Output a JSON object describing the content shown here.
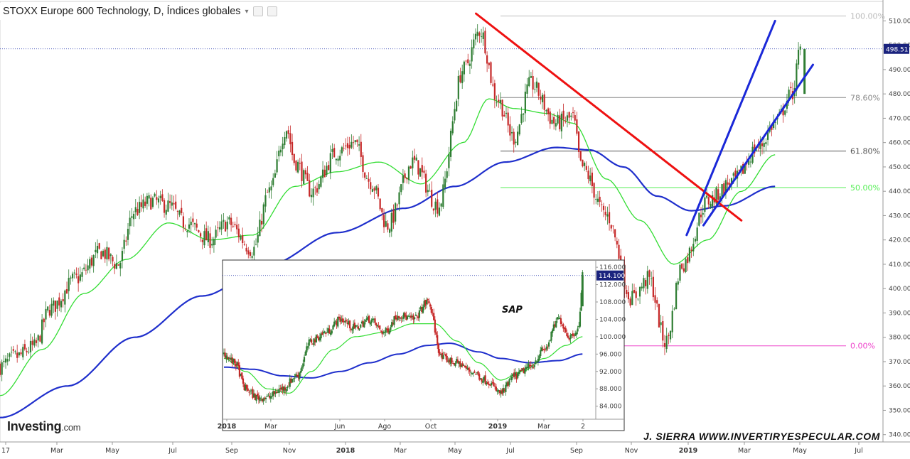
{
  "header": {
    "title": "STOXX Europe 600 Technology, D, Índices globales",
    "caret_icon": "chevron-down-icon",
    "buttons": [
      "settings-icon",
      "close-icon"
    ]
  },
  "branding": {
    "logo_main": "Investing",
    "logo_suffix": ".com",
    "author": "J. SIERRA   WWW.INVERTIRYESPECULAR.COM"
  },
  "colors": {
    "up": "#2e7d32",
    "down": "#c62828",
    "ma_fast": "#33dd33",
    "ma_slow": "#1f2fcc",
    "trend_red": "#ee1111",
    "trend_blue": "#1a28d8",
    "fib_pink": "#ee44cc",
    "fib_green": "#66ee66",
    "fib_grey": "#888888",
    "price_label_bg": "#1a237e"
  },
  "chart_data": [
    {
      "name": "main",
      "type": "line",
      "title": "STOXX Europe 600 Technology, D, Índices globales",
      "x_ticks": [
        "17",
        "Mar",
        "May",
        "Jul",
        "Sep",
        "Nov",
        "2018",
        "Mar",
        "May",
        "Jul",
        "Sep",
        "Nov",
        "2019",
        "Mar",
        "May",
        "Jul"
      ],
      "y_ticks": [
        340,
        350,
        360,
        370,
        380,
        390,
        400,
        410,
        420,
        430,
        440,
        450,
        460,
        470,
        480,
        490,
        500,
        510
      ],
      "ylim": [
        337,
        518
      ],
      "last_price": "498.51",
      "price_series": [
        {
          "t": 0,
          "v": 368
        },
        {
          "t": 0.02,
          "v": 372
        },
        {
          "t": 0.04,
          "v": 376
        },
        {
          "t": 0.06,
          "v": 392
        },
        {
          "t": 0.09,
          "v": 404
        },
        {
          "t": 0.12,
          "v": 415
        },
        {
          "t": 0.14,
          "v": 410
        },
        {
          "t": 0.16,
          "v": 432
        },
        {
          "t": 0.18,
          "v": 436
        },
        {
          "t": 0.2,
          "v": 434
        },
        {
          "t": 0.22,
          "v": 427
        },
        {
          "t": 0.25,
          "v": 420
        },
        {
          "t": 0.27,
          "v": 427
        },
        {
          "t": 0.3,
          "v": 416
        },
        {
          "t": 0.32,
          "v": 440
        },
        {
          "t": 0.34,
          "v": 466
        },
        {
          "t": 0.35,
          "v": 452
        },
        {
          "t": 0.37,
          "v": 440
        },
        {
          "t": 0.4,
          "v": 456
        },
        {
          "t": 0.42,
          "v": 460
        },
        {
          "t": 0.44,
          "v": 444
        },
        {
          "t": 0.46,
          "v": 426
        },
        {
          "t": 0.49,
          "v": 452
        },
        {
          "t": 0.52,
          "v": 434
        },
        {
          "t": 0.55,
          "v": 490
        },
        {
          "t": 0.57,
          "v": 506
        },
        {
          "t": 0.59,
          "v": 478
        },
        {
          "t": 0.61,
          "v": 462
        },
        {
          "t": 0.63,
          "v": 484
        },
        {
          "t": 0.66,
          "v": 468
        },
        {
          "t": 0.68,
          "v": 470
        },
        {
          "t": 0.69,
          "v": 450
        },
        {
          "t": 0.72,
          "v": 430
        },
        {
          "t": 0.75,
          "v": 396
        },
        {
          "t": 0.77,
          "v": 404
        },
        {
          "t": 0.79,
          "v": 378
        },
        {
          "t": 0.81,
          "v": 410
        },
        {
          "t": 0.84,
          "v": 436
        },
        {
          "t": 0.87,
          "v": 444
        },
        {
          "t": 0.9,
          "v": 458
        },
        {
          "t": 0.92,
          "v": 468
        },
        {
          "t": 0.94,
          "v": 480
        },
        {
          "t": 0.95,
          "v": 498
        }
      ],
      "ma_fast": [
        {
          "t": 0,
          "v": 356
        },
        {
          "t": 0.05,
          "v": 375
        },
        {
          "t": 0.1,
          "v": 398
        },
        {
          "t": 0.15,
          "v": 412
        },
        {
          "t": 0.2,
          "v": 427
        },
        {
          "t": 0.25,
          "v": 420
        },
        {
          "t": 0.3,
          "v": 422
        },
        {
          "t": 0.35,
          "v": 442
        },
        {
          "t": 0.4,
          "v": 448
        },
        {
          "t": 0.45,
          "v": 452
        },
        {
          "t": 0.5,
          "v": 443
        },
        {
          "t": 0.55,
          "v": 460
        },
        {
          "t": 0.58,
          "v": 478
        },
        {
          "t": 0.61,
          "v": 474
        },
        {
          "t": 0.65,
          "v": 472
        },
        {
          "t": 0.68,
          "v": 468
        },
        {
          "t": 0.72,
          "v": 445
        },
        {
          "t": 0.76,
          "v": 428
        },
        {
          "t": 0.8,
          "v": 410
        },
        {
          "t": 0.84,
          "v": 420
        },
        {
          "t": 0.88,
          "v": 440
        },
        {
          "t": 0.92,
          "v": 455
        }
      ],
      "ma_slow": [
        {
          "t": 0,
          "v": 347
        },
        {
          "t": 0.08,
          "v": 360
        },
        {
          "t": 0.16,
          "v": 380
        },
        {
          "t": 0.24,
          "v": 397
        },
        {
          "t": 0.32,
          "v": 410
        },
        {
          "t": 0.4,
          "v": 423
        },
        {
          "t": 0.48,
          "v": 433
        },
        {
          "t": 0.54,
          "v": 442
        },
        {
          "t": 0.6,
          "v": 452
        },
        {
          "t": 0.66,
          "v": 458
        },
        {
          "t": 0.7,
          "v": 457
        },
        {
          "t": 0.74,
          "v": 450
        },
        {
          "t": 0.78,
          "v": 438
        },
        {
          "t": 0.82,
          "v": 432
        },
        {
          "t": 0.86,
          "v": 434
        },
        {
          "t": 0.92,
          "v": 442
        }
      ],
      "fib_levels": [
        {
          "label": "100.00%",
          "value": 512,
          "color": "#bbbbbb"
        },
        {
          "label": "78.60%",
          "value": 478.5,
          "color": "#888888"
        },
        {
          "label": "61.80%",
          "value": 456.5,
          "color": "#555555"
        },
        {
          "label": "50.00%",
          "value": 441.5,
          "color": "#55ee55"
        },
        {
          "label": "0.00%",
          "value": 376.5,
          "color": "#ee44cc"
        }
      ],
      "trendlines": [
        {
          "color": "#ee1111",
          "from": {
            "t": 0.565,
            "v": 513
          },
          "to": {
            "t": 0.88,
            "v": 428
          }
        },
        {
          "color": "#1a28d8",
          "from": {
            "t": 0.815,
            "v": 422
          },
          "to": {
            "t": 0.92,
            "v": 510
          }
        },
        {
          "color": "#1a28d8",
          "from": {
            "t": 0.835,
            "v": 426
          },
          "to": {
            "t": 0.965,
            "v": 492
          }
        }
      ]
    },
    {
      "name": "inset",
      "type": "line",
      "annotation": "SAP",
      "x_ticks": [
        "2018",
        "Mar",
        "Jun",
        "Ago",
        "Oct",
        "2019",
        "Mar",
        "2"
      ],
      "y_ticks": [
        "84.000",
        "88.000",
        "92.000",
        "96.000",
        "100.000",
        "104.000",
        "108.000",
        "112.000",
        "116.000"
      ],
      "ylim": [
        81,
        117
      ],
      "last_price": "114.100",
      "price_series": [
        {
          "t": 0,
          "v": 96
        },
        {
          "t": 0.03,
          "v": 94
        },
        {
          "t": 0.06,
          "v": 88
        },
        {
          "t": 0.09,
          "v": 86
        },
        {
          "t": 0.12,
          "v": 86
        },
        {
          "t": 0.16,
          "v": 88
        },
        {
          "t": 0.2,
          "v": 91
        },
        {
          "t": 0.24,
          "v": 99
        },
        {
          "t": 0.28,
          "v": 101
        },
        {
          "t": 0.32,
          "v": 104
        },
        {
          "t": 0.36,
          "v": 102
        },
        {
          "t": 0.4,
          "v": 104
        },
        {
          "t": 0.44,
          "v": 101
        },
        {
          "t": 0.48,
          "v": 105
        },
        {
          "t": 0.52,
          "v": 104
        },
        {
          "t": 0.56,
          "v": 108
        },
        {
          "t": 0.6,
          "v": 95
        },
        {
          "t": 0.64,
          "v": 94
        },
        {
          "t": 0.68,
          "v": 92
        },
        {
          "t": 0.72,
          "v": 90
        },
        {
          "t": 0.76,
          "v": 87
        },
        {
          "t": 0.8,
          "v": 91
        },
        {
          "t": 0.84,
          "v": 93
        },
        {
          "t": 0.88,
          "v": 97
        },
        {
          "t": 0.92,
          "v": 104
        },
        {
          "t": 0.95,
          "v": 100
        },
        {
          "t": 0.975,
          "v": 102
        },
        {
          "t": 0.985,
          "v": 114
        }
      ],
      "ma_fast": [
        {
          "t": 0,
          "v": 95
        },
        {
          "t": 0.06,
          "v": 92
        },
        {
          "t": 0.12,
          "v": 88
        },
        {
          "t": 0.18,
          "v": 87
        },
        {
          "t": 0.24,
          "v": 92
        },
        {
          "t": 0.3,
          "v": 97
        },
        {
          "t": 0.36,
          "v": 100
        },
        {
          "t": 0.44,
          "v": 101
        },
        {
          "t": 0.52,
          "v": 103
        },
        {
          "t": 0.58,
          "v": 103
        },
        {
          "t": 0.64,
          "v": 99
        },
        {
          "t": 0.7,
          "v": 94
        },
        {
          "t": 0.76,
          "v": 90
        },
        {
          "t": 0.82,
          "v": 92
        },
        {
          "t": 0.88,
          "v": 95
        },
        {
          "t": 0.94,
          "v": 98
        },
        {
          "t": 0.985,
          "v": 100
        }
      ],
      "ma_slow": [
        {
          "t": 0,
          "v": 93
        },
        {
          "t": 0.08,
          "v": 92.5
        },
        {
          "t": 0.16,
          "v": 91
        },
        {
          "t": 0.24,
          "v": 90.5
        },
        {
          "t": 0.32,
          "v": 92
        },
        {
          "t": 0.4,
          "v": 94
        },
        {
          "t": 0.48,
          "v": 96
        },
        {
          "t": 0.56,
          "v": 98
        },
        {
          "t": 0.62,
          "v": 98.5
        },
        {
          "t": 0.7,
          "v": 96.5
        },
        {
          "t": 0.76,
          "v": 95
        },
        {
          "t": 0.84,
          "v": 94
        },
        {
          "t": 0.92,
          "v": 94.5
        },
        {
          "t": 0.985,
          "v": 96
        }
      ]
    }
  ]
}
